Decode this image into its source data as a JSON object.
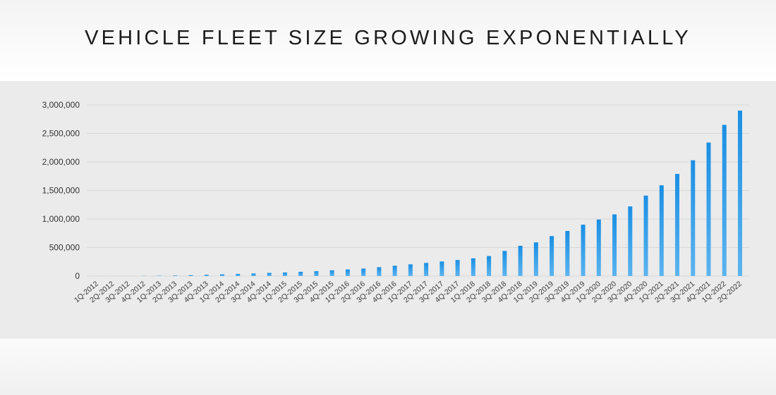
{
  "slide": {
    "title": "VEHICLE FLEET SIZE GROWING EXPONENTIALLY"
  },
  "chart_data": {
    "type": "bar",
    "title": "VEHICLE FLEET SIZE GROWING EXPONENTIALLY",
    "xlabel": "",
    "ylabel": "",
    "ylim": [
      0,
      3000000
    ],
    "yticks": [
      0,
      500000,
      1000000,
      1500000,
      2000000,
      2500000,
      3000000
    ],
    "ytick_labels": [
      "0",
      "500,000",
      "1,000,000",
      "1,500,000",
      "2,000,000",
      "2,500,000",
      "3,000,000"
    ],
    "grid": true,
    "bar_color": "#1a8fe3",
    "bar_color_light": "#5cb4ef",
    "categories": [
      "1Q-2012",
      "2Q-2012",
      "3Q-2012",
      "4Q-2012",
      "1Q-2013",
      "2Q-2013",
      "3Q-2013",
      "4Q-2013",
      "1Q-2014",
      "2Q-2014",
      "3Q-2014",
      "4Q-2014",
      "1Q-2015",
      "2Q-2015",
      "3Q-2015",
      "4Q-2015",
      "1Q-2016",
      "2Q-2016",
      "3Q-2016",
      "4Q-2016",
      "1Q-2017",
      "2Q-2017",
      "3Q-2017",
      "4Q-2017",
      "1Q-2018",
      "2Q-2018",
      "3Q-2018",
      "4Q-2018",
      "1Q-2019",
      "2Q-2019",
      "3Q-2019",
      "4Q-2019",
      "1Q-2020",
      "2Q-2020",
      "3Q-2020",
      "4Q-2020",
      "1Q-2021",
      "2Q-2021",
      "3Q-2021",
      "4Q-2021",
      "1Q-2022",
      "2Q-2022"
    ],
    "values": [
      0,
      0,
      500,
      2500,
      5000,
      10000,
      15000,
      22000,
      30000,
      37000,
      45000,
      55000,
      62000,
      74000,
      85000,
      100000,
      115000,
      130000,
      155000,
      180000,
      205000,
      230000,
      255000,
      280000,
      310000,
      350000,
      440000,
      530000,
      590000,
      700000,
      790000,
      900000,
      990000,
      1080000,
      1220000,
      1410000,
      1590000,
      1790000,
      2030000,
      2340000,
      2650000,
      2900000
    ]
  }
}
